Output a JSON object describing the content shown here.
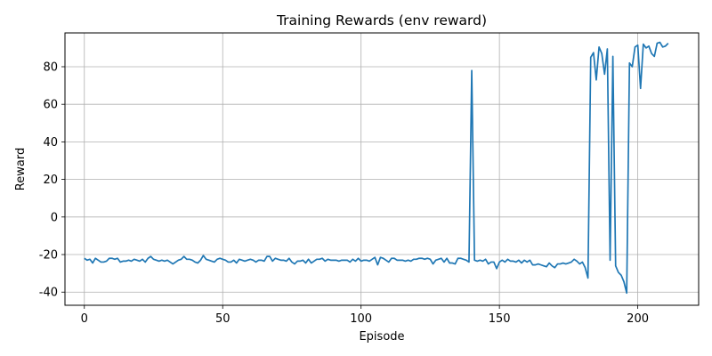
{
  "chart_data": {
    "type": "line",
    "title": "Training Rewards (env reward)",
    "xlabel": "Episode",
    "ylabel": "Reward",
    "xlim": [
      -7,
      222
    ],
    "ylim": [
      -47,
      98
    ],
    "xticks": [
      0,
      50,
      100,
      150,
      200
    ],
    "yticks": [
      -40,
      -20,
      0,
      20,
      40,
      60,
      80
    ],
    "grid": true,
    "line_color": "#1f77b4",
    "series": [
      {
        "x": [
          0,
          1,
          2,
          3,
          4,
          5,
          6,
          7,
          8,
          9,
          10,
          11,
          12,
          13,
          14,
          15,
          16,
          17,
          18,
          19,
          20,
          21,
          22,
          23,
          24,
          25,
          26,
          27,
          28,
          29,
          30,
          31,
          32,
          33,
          34,
          35,
          36,
          37,
          38,
          39,
          40,
          41,
          42,
          43,
          44,
          45,
          46,
          47,
          48,
          49,
          50,
          51,
          52,
          53,
          54,
          55,
          56,
          57,
          58,
          59,
          60,
          61,
          62,
          63,
          64,
          65,
          66,
          67,
          68,
          69,
          70,
          71,
          72,
          73,
          74,
          75,
          76,
          77,
          78,
          79,
          80,
          81,
          82,
          83,
          84,
          85,
          86,
          87,
          88,
          89,
          90,
          91,
          92,
          93,
          94,
          95,
          96,
          97,
          98,
          99,
          100,
          101,
          102,
          103,
          104,
          105,
          106,
          107,
          108,
          109,
          110,
          111,
          112,
          113,
          114,
          115,
          116,
          117,
          118,
          119,
          120,
          121,
          122,
          123,
          124,
          125,
          126,
          127,
          128,
          129,
          130,
          131,
          132,
          133,
          134,
          135,
          136,
          137,
          138,
          139,
          140,
          141,
          142,
          143,
          144,
          145,
          146,
          147,
          148,
          149,
          150,
          151,
          152,
          153,
          154,
          155,
          156,
          157,
          158,
          159,
          160,
          161,
          162,
          163,
          164,
          165,
          166,
          167,
          168,
          169,
          170,
          171,
          172,
          173,
          174,
          175,
          176,
          177,
          178,
          179,
          180,
          181,
          182,
          183,
          184,
          185,
          186,
          187,
          188,
          189,
          190,
          191,
          192,
          193,
          194,
          195,
          196,
          197,
          198,
          199,
          200,
          201,
          202,
          203,
          204,
          205,
          206,
          207,
          208,
          209,
          210,
          211
        ],
        "values": [
          -22,
          -23,
          -22.5,
          -24.5,
          -22,
          -23,
          -24,
          -24,
          -23.5,
          -22,
          -22,
          -22.5,
          -22,
          -24,
          -23.5,
          -23.5,
          -23,
          -23.5,
          -22.5,
          -23,
          -23.5,
          -22.5,
          -24,
          -22,
          -21,
          -22.5,
          -23,
          -23.5,
          -23,
          -23.5,
          -23,
          -24,
          -25,
          -24,
          -23,
          -22.5,
          -21,
          -22.5,
          -22.5,
          -23,
          -24,
          -24.5,
          -23,
          -20.5,
          -22.5,
          -23,
          -23.5,
          -24,
          -22.5,
          -22,
          -22.5,
          -23,
          -24,
          -24,
          -23,
          -24.5,
          -22.5,
          -23,
          -23.5,
          -23,
          -22.5,
          -23,
          -24,
          -23,
          -23,
          -23.5,
          -21,
          -21,
          -23.5,
          -22,
          -22.5,
          -23,
          -23,
          -23.5,
          -22,
          -24,
          -25,
          -23.5,
          -23.5,
          -23,
          -24.5,
          -22.5,
          -24.5,
          -23.5,
          -22.5,
          -22.5,
          -22,
          -23.5,
          -22.5,
          -23,
          -23,
          -23,
          -23.5,
          -23,
          -23,
          -23,
          -24,
          -22.5,
          -23.5,
          -22,
          -23.5,
          -23,
          -23,
          -23.5,
          -22.5,
          -21.5,
          -25.5,
          -21.5,
          -22,
          -23,
          -24,
          -22,
          -22,
          -23,
          -23,
          -23,
          -23.5,
          -23,
          -23.5,
          -22.5,
          -22.5,
          -22,
          -22,
          -22.5,
          -22,
          -22.5,
          -25,
          -23,
          -22.5,
          -22,
          -24,
          -22,
          -24.5,
          -24.5,
          -25,
          -22,
          -22,
          -22.5,
          -23,
          -24,
          78,
          -23,
          -23.5,
          -23,
          -23.5,
          -22.5,
          -25,
          -24,
          -24,
          -27.5,
          -24,
          -23,
          -24,
          -22.5,
          -23.5,
          -23.5,
          -24,
          -23,
          -24.5,
          -23,
          -24,
          -23,
          -25.5,
          -25.5,
          -25,
          -25.5,
          -26,
          -26.5,
          -24.5,
          -26,
          -27,
          -25,
          -25,
          -24.5,
          -25,
          -24.5,
          -24,
          -22.5,
          -23.5,
          -25,
          -24,
          -27,
          -32.5,
          85,
          87.5,
          73,
          90.5,
          87,
          76,
          89.5,
          -23,
          85.5,
          -26,
          -29.5,
          -31,
          -34.5,
          -40.5,
          82,
          80,
          90.5,
          91.5,
          68.5,
          92,
          90,
          91,
          87,
          85.5,
          92.5,
          93,
          90.5,
          91,
          92.5
        ]
      }
    ]
  }
}
